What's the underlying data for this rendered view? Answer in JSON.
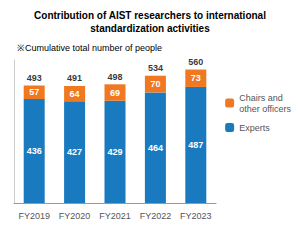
{
  "chart_data": {
    "type": "bar",
    "title": "Contribution of AIST researchers to international\nstandardization activities",
    "subtitle": "※Cumulative total number of people",
    "categories": [
      "FY2019",
      "FY2020",
      "FY2021",
      "FY2022",
      "FY2023"
    ],
    "series": [
      {
        "name": "Experts",
        "color": "#1a7abf",
        "values": [
          436,
          427,
          429,
          464,
          487
        ]
      },
      {
        "name": "Chairs and\nother officers",
        "color": "#f07820",
        "values": [
          57,
          64,
          69,
          70,
          73
        ]
      }
    ],
    "totals": [
      493,
      491,
      498,
      534,
      560
    ],
    "stacked": true,
    "data_labels": true,
    "ylim": [
      0,
      600
    ],
    "tick_labels": "x",
    "grid": false,
    "legend": "right"
  }
}
